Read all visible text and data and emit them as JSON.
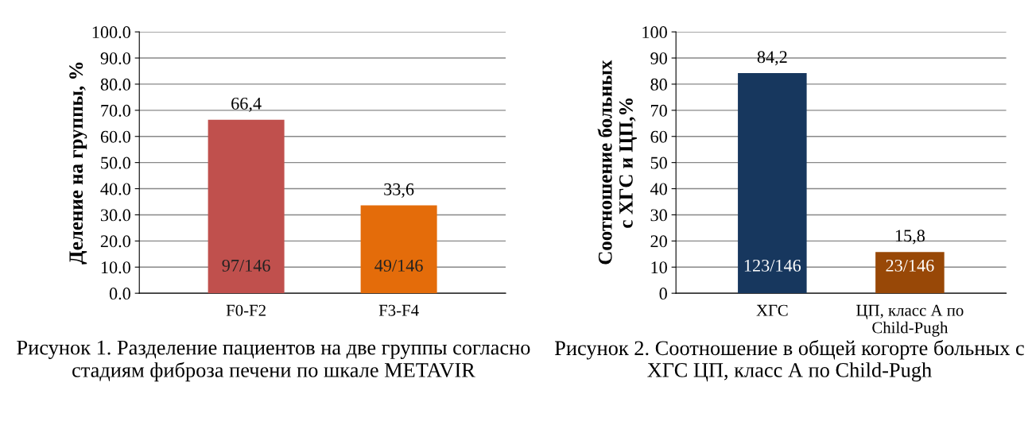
{
  "chart_data": [
    {
      "type": "bar",
      "ylabel": "Деление на группы, %",
      "categories": [
        "F0-F2",
        "F3-F4"
      ],
      "values": [
        66.4,
        33.6
      ],
      "colors": [
        "#c0504d",
        "#e46c0a"
      ],
      "value_labels": [
        "66,4",
        "33,6"
      ],
      "ylim": [
        0,
        100
      ],
      "yticks": [
        {
          "value": 0,
          "label": "0.0"
        },
        {
          "value": 10,
          "label": "10.0"
        },
        {
          "value": 20,
          "label": "20.0"
        },
        {
          "value": 30,
          "label": "30.0"
        },
        {
          "value": 40,
          "label": "40.0"
        },
        {
          "value": 50,
          "label": "50.0"
        },
        {
          "value": 60,
          "label": "60.0"
        },
        {
          "value": 70,
          "label": "70.0"
        },
        {
          "value": 80,
          "label": "80.0"
        },
        {
          "value": 90,
          "label": "90.0"
        },
        {
          "value": 100,
          "label": "100.0"
        }
      ],
      "grid": "y",
      "legend": false,
      "annotations": [
        "97/146",
        "49/146",
        "Рисунок 1. Разделение пациентов на две группы согласно стадиям фиброза печени по шкале METAVIR"
      ]
    },
    {
      "type": "bar",
      "ylabel": "Соотношение больных\nс ХГС и ЦП,%",
      "categories": [
        "ХГС",
        "ЦП, класс А по\nChild-Pugh"
      ],
      "values": [
        84.2,
        15.8
      ],
      "colors": [
        "#17375e",
        "#984807"
      ],
      "value_labels": [
        "84,2",
        "15,8"
      ],
      "ylim": [
        0,
        100
      ],
      "yticks": [
        0,
        10,
        20,
        30,
        40,
        50,
        60,
        70,
        80,
        90,
        100
      ],
      "grid": "y",
      "legend": false,
      "annotations": [
        "123/146",
        "23/146",
        "Рисунок 2. Соотношение в общей когорте больных с ХГС ЦП, класс А по Child-Pugh"
      ]
    }
  ]
}
